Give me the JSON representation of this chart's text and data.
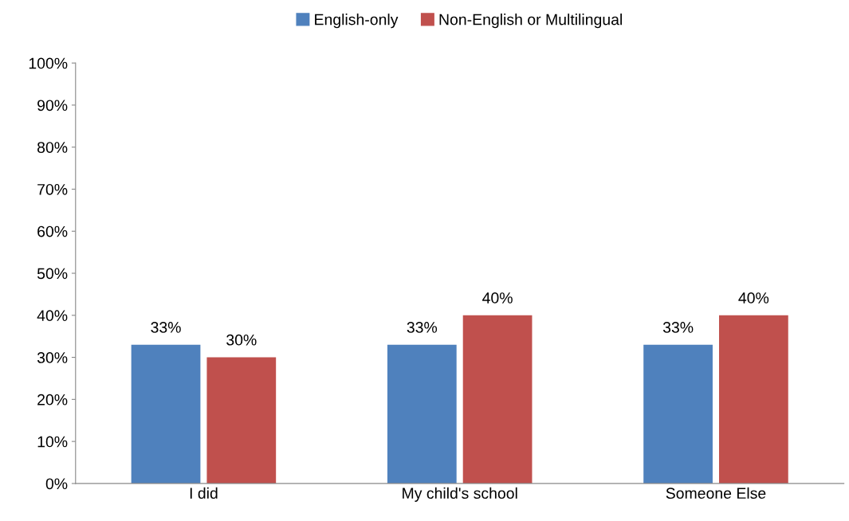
{
  "chart_data": {
    "type": "bar",
    "categories": [
      "I did",
      "My child's school",
      "Someone Else"
    ],
    "series": [
      {
        "name": "English-only",
        "color": "#4f81bd",
        "values": [
          33,
          33,
          33
        ],
        "value_labels": [
          "33%",
          "33%",
          "33%"
        ]
      },
      {
        "name": "Non-English or Multilingual",
        "color": "#c0504d",
        "values": [
          30,
          40,
          40
        ],
        "value_labels": [
          "30%",
          "40%",
          "40%"
        ]
      }
    ],
    "ylim": [
      0,
      100
    ],
    "yticks": [
      {
        "value": 0,
        "label": "0%"
      },
      {
        "value": 10,
        "label": "10%"
      },
      {
        "value": 20,
        "label": "20%"
      },
      {
        "value": 30,
        "label": "30%"
      },
      {
        "value": 40,
        "label": "40%"
      },
      {
        "value": 50,
        "label": "50%"
      },
      {
        "value": 60,
        "label": "60%"
      },
      {
        "value": 70,
        "label": "70%"
      },
      {
        "value": 80,
        "label": "80%"
      },
      {
        "value": 90,
        "label": "90%"
      },
      {
        "value": 100,
        "label": "100%"
      }
    ],
    "grid": false,
    "legend": "top"
  }
}
